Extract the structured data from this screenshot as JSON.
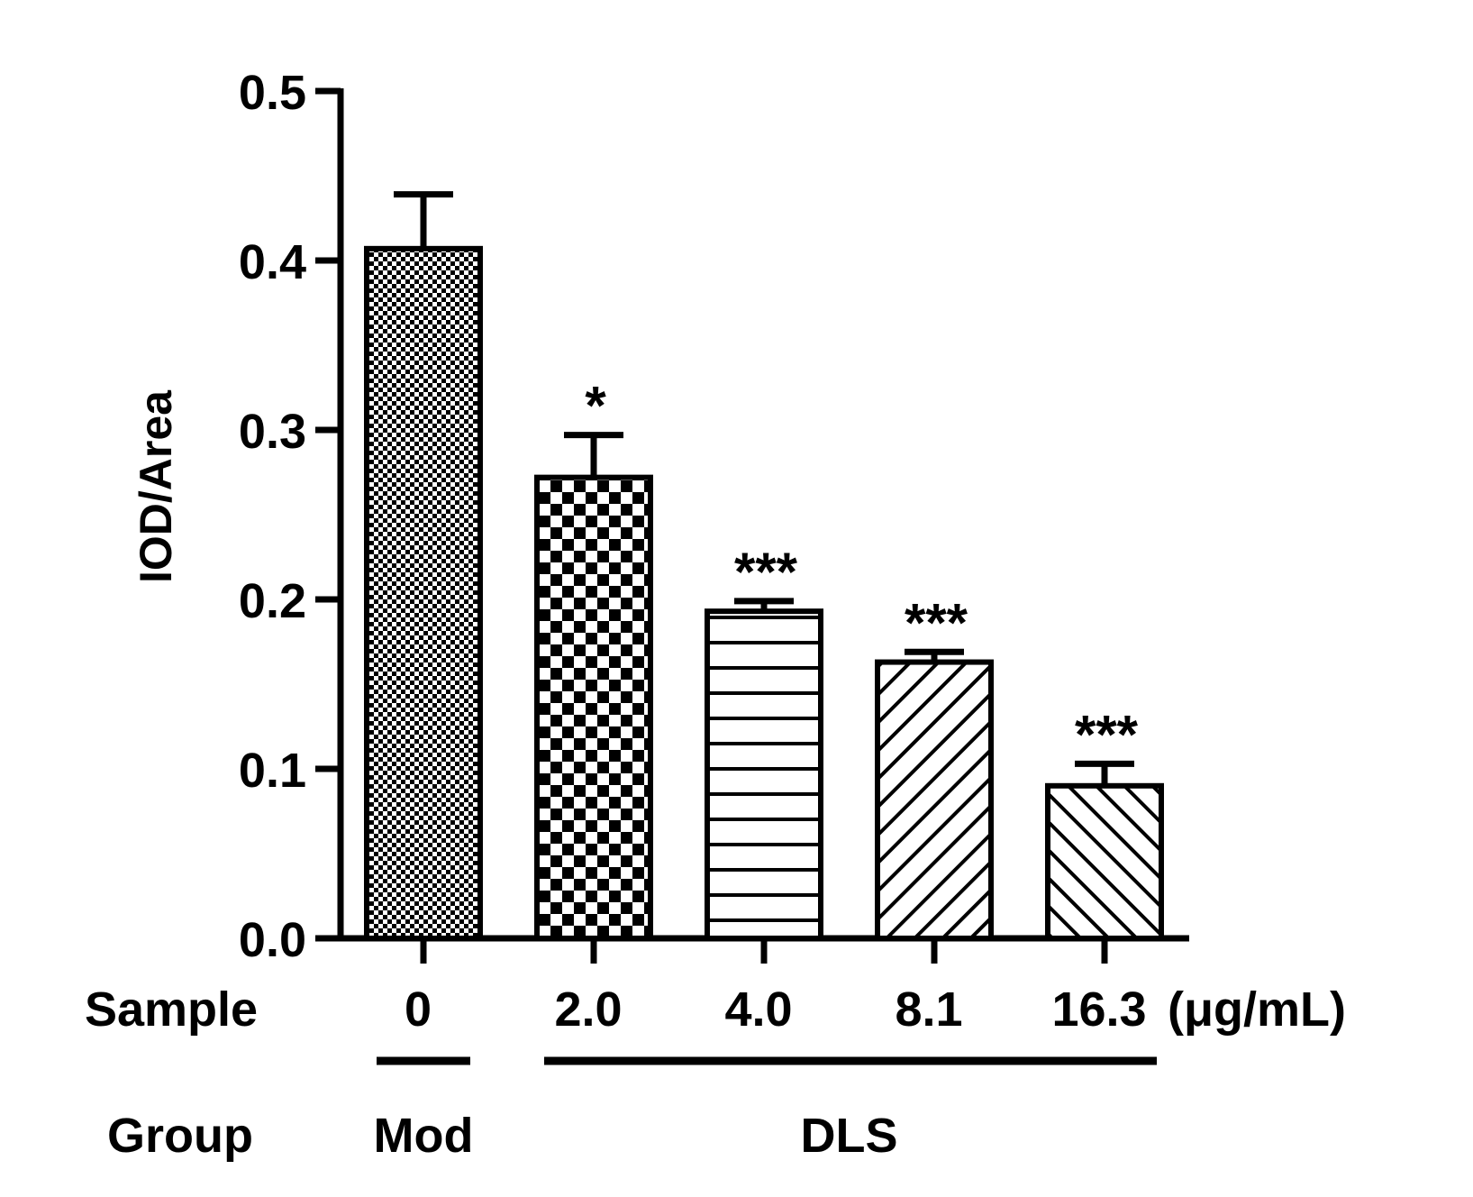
{
  "chart_data": {
    "type": "bar",
    "ylabel": "IOD/Area",
    "ylim": [
      0,
      0.5
    ],
    "yticks": [
      "0.0",
      "0.1",
      "0.2",
      "0.3",
      "0.4",
      "0.5"
    ],
    "grid": false,
    "categories": [
      "0",
      "2.0",
      "4.0",
      "8.1",
      "16.3"
    ],
    "values": [
      0.407,
      0.272,
      0.193,
      0.163,
      0.09
    ],
    "error_bars": [
      0.032,
      0.025,
      0.006,
      0.006,
      0.013
    ],
    "significance": [
      "",
      "*",
      "***",
      "***",
      "***"
    ],
    "patterns": [
      "fine-checker",
      "checker",
      "horizontal-stripes",
      "diagonal-forward",
      "diagonal-backward"
    ],
    "sample_row_label": "Sample",
    "unit": "(μg/mL)",
    "group_row_label": "Group",
    "groups": [
      {
        "name": "Mod",
        "start": 0,
        "end": 0
      },
      {
        "name": "DLS",
        "start": 1,
        "end": 4
      }
    ],
    "colors": {
      "ink": "#000000",
      "fill": "#ffffff"
    }
  }
}
